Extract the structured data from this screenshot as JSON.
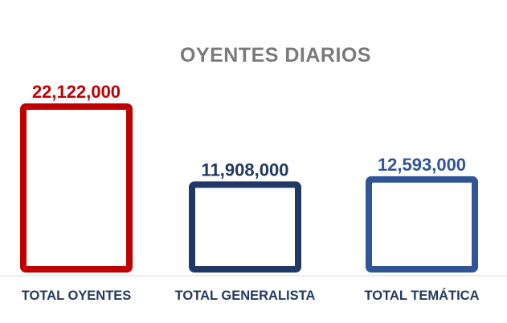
{
  "chart_data": {
    "type": "bar",
    "title": "OYENTES DIARIOS",
    "categories": [
      "TOTAL OYENTES",
      "TOTAL GENERALISTA",
      "TOTAL TEMÁTICA"
    ],
    "values": [
      22122000,
      11908000,
      12593000
    ],
    "value_labels": [
      "22,122,000",
      "11,908,000",
      "12,593,000"
    ],
    "colors": [
      "#c00000",
      "#1f3864",
      "#2f5597"
    ],
    "bar_style": "outlined",
    "xlabel": "",
    "ylabel": "",
    "ylim": [
      0,
      22122000
    ],
    "grid": false,
    "legend": "none"
  }
}
